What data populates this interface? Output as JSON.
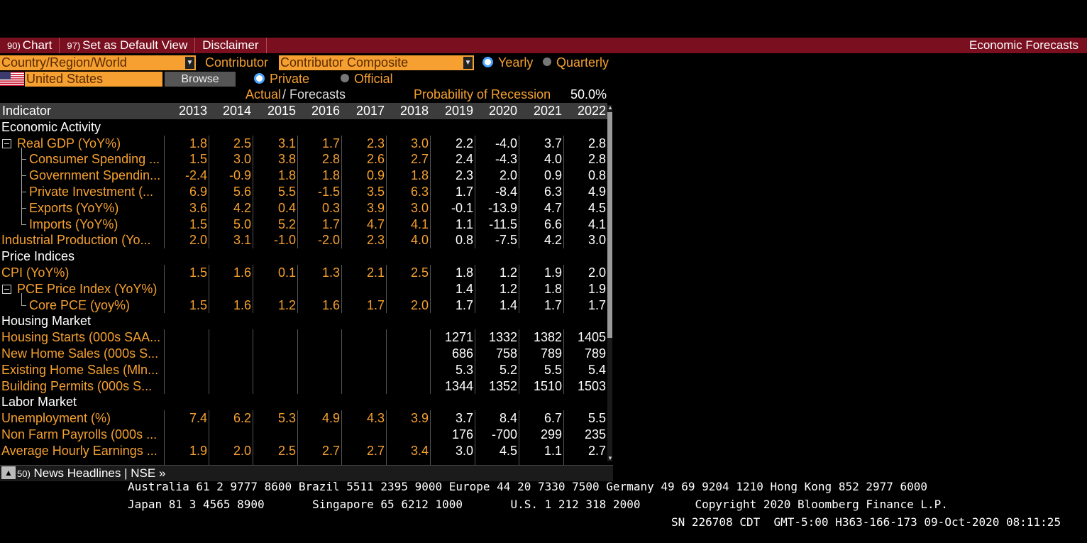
{
  "toolbar": {
    "chart_num": "90)",
    "chart_label": "Chart",
    "default_num": "97)",
    "default_label": "Set as Default View",
    "disclaimer_label": "Disclaimer",
    "title": "Economic Forecasts"
  },
  "controls": {
    "region_selector": "Country/Region/World",
    "contributor_label": "Contributor",
    "contributor_value": "Contributor Composite",
    "yearly_label": "Yearly",
    "quarterly_label": "Quarterly",
    "country_value": "United States",
    "browse_label": "Browse",
    "private_label": "Private",
    "official_label": "Official",
    "actual_label": "Actual",
    "forecasts_label": "/ Forecasts",
    "recession_label": "Probability of Recession",
    "recession_value": "50.0%"
  },
  "table": {
    "header_label": "Indicator",
    "years": [
      "2013",
      "2014",
      "2015",
      "2016",
      "2017",
      "2018",
      "2019",
      "2020",
      "2021",
      "2022"
    ],
    "rows": [
      {
        "type": "section",
        "label": "Economic Activity"
      },
      {
        "type": "item",
        "label": "Real GDP (YoY%)",
        "indent": 0,
        "collapse": true,
        "values": [
          "1.8",
          "2.5",
          "3.1",
          "1.7",
          "2.3",
          "3.0",
          "2.2",
          "-4.0",
          "3.7",
          "2.8"
        ]
      },
      {
        "type": "item",
        "label": "Consumer Spending ...",
        "indent": 1,
        "values": [
          "1.5",
          "3.0",
          "3.8",
          "2.8",
          "2.6",
          "2.7",
          "2.4",
          "-4.3",
          "4.0",
          "2.8"
        ]
      },
      {
        "type": "item",
        "label": "Government Spendin...",
        "indent": 1,
        "values": [
          "-2.4",
          "-0.9",
          "1.8",
          "1.8",
          "0.9",
          "1.8",
          "2.3",
          "2.0",
          "0.9",
          "0.8"
        ]
      },
      {
        "type": "item",
        "label": "Private Investment (...",
        "indent": 1,
        "values": [
          "6.9",
          "5.6",
          "5.5",
          "-1.5",
          "3.5",
          "6.3",
          "1.7",
          "-8.4",
          "6.3",
          "4.9"
        ]
      },
      {
        "type": "item",
        "label": "Exports (YoY%)",
        "indent": 1,
        "values": [
          "3.6",
          "4.2",
          "0.4",
          "0.3",
          "3.9",
          "3.0",
          "-0.1",
          "-13.9",
          "4.7",
          "4.5"
        ]
      },
      {
        "type": "item",
        "label": "Imports (YoY%)",
        "indent": 1,
        "last": true,
        "values": [
          "1.5",
          "5.0",
          "5.2",
          "1.7",
          "4.7",
          "4.1",
          "1.1",
          "-11.5",
          "6.6",
          "4.1"
        ]
      },
      {
        "type": "item",
        "label": "Industrial Production (Yo...",
        "indent": 0,
        "values": [
          "2.0",
          "3.1",
          "-1.0",
          "-2.0",
          "2.3",
          "4.0",
          "0.8",
          "-7.5",
          "4.2",
          "3.0"
        ]
      },
      {
        "type": "section",
        "label": "Price Indices"
      },
      {
        "type": "item",
        "label": "CPI (YoY%)",
        "indent": 0,
        "values": [
          "1.5",
          "1.6",
          "0.1",
          "1.3",
          "2.1",
          "2.5",
          "1.8",
          "1.2",
          "1.9",
          "2.0"
        ]
      },
      {
        "type": "item",
        "label": "PCE Price Index (YoY%)",
        "indent": 0,
        "collapse": true,
        "values": [
          "",
          "",
          "",
          "",
          "",
          "",
          "1.4",
          "1.2",
          "1.8",
          "1.9"
        ]
      },
      {
        "type": "item",
        "label": "Core PCE (yoy%)",
        "indent": 1,
        "last": true,
        "values": [
          "1.5",
          "1.6",
          "1.2",
          "1.6",
          "1.7",
          "2.0",
          "1.7",
          "1.4",
          "1.7",
          "1.7"
        ]
      },
      {
        "type": "section",
        "label": "Housing Market"
      },
      {
        "type": "item",
        "label": "Housing Starts (000s SAA...",
        "indent": 0,
        "values": [
          "",
          "",
          "",
          "",
          "",
          "",
          "1271",
          "1332",
          "1382",
          "1405"
        ]
      },
      {
        "type": "item",
        "label": "New Home Sales (000s S...",
        "indent": 0,
        "values": [
          "",
          "",
          "",
          "",
          "",
          "",
          "686",
          "758",
          "789",
          "789"
        ]
      },
      {
        "type": "item",
        "label": "Existing Home Sales (Mln...",
        "indent": 0,
        "values": [
          "",
          "",
          "",
          "",
          "",
          "",
          "5.3",
          "5.2",
          "5.5",
          "5.4"
        ]
      },
      {
        "type": "item",
        "label": "Building Permits (000s S...",
        "indent": 0,
        "values": [
          "",
          "",
          "",
          "",
          "",
          "",
          "1344",
          "1352",
          "1510",
          "1503"
        ]
      },
      {
        "type": "section",
        "label": "Labor Market"
      },
      {
        "type": "item",
        "label": "Unemployment (%)",
        "indent": 0,
        "values": [
          "7.4",
          "6.2",
          "5.3",
          "4.9",
          "4.3",
          "3.9",
          "3.7",
          "8.4",
          "6.7",
          "5.5"
        ]
      },
      {
        "type": "item",
        "label": "Non Farm Payrolls (000s ...",
        "indent": 0,
        "values": [
          "",
          "",
          "",
          "",
          "",
          "",
          "176",
          "-700",
          "299",
          "235"
        ]
      },
      {
        "type": "item",
        "label": "Average Hourly Earnings ...",
        "indent": 0,
        "values": [
          "1.9",
          "2.0",
          "2.5",
          "2.7",
          "2.7",
          "3.4",
          "3.0",
          "4.5",
          "1.1",
          "2.7"
        ]
      }
    ]
  },
  "news": {
    "num": "50)",
    "label": "News Headlines",
    "separator": "|",
    "source": "NSE »"
  },
  "footer": {
    "line1": "Australia 61 2 9777 8600 Brazil 5511 2395 9000 Europe 44 20 7330 7500 Germany 49 69 9204 1210 Hong Kong 852 2977 6000",
    "line2": "Japan 81 3 4565 8900       Singapore 65 6212 1000       U.S. 1 212 318 2000        Copyright 2020 Bloomberg Finance L.P.",
    "line3": "SN 226708 CDT  GMT-5:00 H363-166-173 09-Oct-2020 08:11:25"
  },
  "colors": {
    "toolbar_bg": "#7a0f1f",
    "actual_values": "#f5a030",
    "forecast_values": "#ffffff",
    "accent_field": "#f5a030"
  }
}
